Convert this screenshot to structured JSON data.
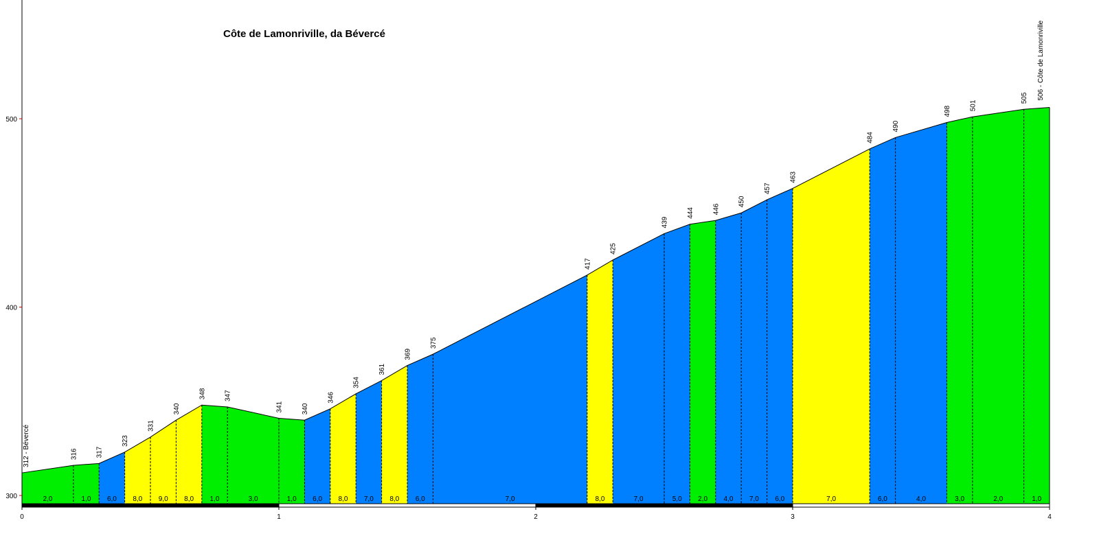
{
  "chart_data": {
    "type": "area",
    "title": "Côte de Lamonriville, da Bévercé",
    "xlabel": "",
    "ylabel": "",
    "xlim": [
      0,
      4
    ],
    "ylim": [
      300,
      545
    ],
    "x_ticks": [
      "0",
      "1",
      "2",
      "3",
      "4"
    ],
    "y_ticks": [
      "300",
      "400",
      "500"
    ],
    "start_label": "312 - Bévercé",
    "end_label": "506 - Côte de Lamonriville",
    "grade_colors": {
      "low": "#00ee00",
      "mid": "#0080ff",
      "high": "#ffff00"
    },
    "points": [
      {
        "x": 0.0,
        "elev": 312,
        "label": ""
      },
      {
        "x": 0.2,
        "elev": 316,
        "label": "316"
      },
      {
        "x": 0.3,
        "elev": 317,
        "label": "317"
      },
      {
        "x": 0.4,
        "elev": 323,
        "label": "323"
      },
      {
        "x": 0.5,
        "elev": 331,
        "label": "331"
      },
      {
        "x": 0.6,
        "elev": 340,
        "label": "340"
      },
      {
        "x": 0.7,
        "elev": 348,
        "label": "348"
      },
      {
        "x": 0.8,
        "elev": 347,
        "label": "347"
      },
      {
        "x": 1.0,
        "elev": 341,
        "label": "341"
      },
      {
        "x": 1.1,
        "elev": 340,
        "label": "340"
      },
      {
        "x": 1.2,
        "elev": 346,
        "label": "346"
      },
      {
        "x": 1.3,
        "elev": 354,
        "label": "354"
      },
      {
        "x": 1.4,
        "elev": 361,
        "label": "361"
      },
      {
        "x": 1.5,
        "elev": 369,
        "label": "369"
      },
      {
        "x": 1.6,
        "elev": 375,
        "label": "375"
      },
      {
        "x": 2.2,
        "elev": 417,
        "label": "417"
      },
      {
        "x": 2.3,
        "elev": 425,
        "label": "425"
      },
      {
        "x": 2.5,
        "elev": 439,
        "label": "439"
      },
      {
        "x": 2.6,
        "elev": 444,
        "label": "444"
      },
      {
        "x": 2.7,
        "elev": 446,
        "label": "446"
      },
      {
        "x": 2.8,
        "elev": 450,
        "label": "450"
      },
      {
        "x": 2.9,
        "elev": 457,
        "label": "457"
      },
      {
        "x": 3.0,
        "elev": 463,
        "label": "463"
      },
      {
        "x": 3.3,
        "elev": 484,
        "label": "484"
      },
      {
        "x": 3.4,
        "elev": 490,
        "label": "490"
      },
      {
        "x": 3.6,
        "elev": 498,
        "label": "498"
      },
      {
        "x": 3.7,
        "elev": 501,
        "label": "501"
      },
      {
        "x": 3.9,
        "elev": 505,
        "label": "505"
      },
      {
        "x": 4.0,
        "elev": 506,
        "label": ""
      }
    ],
    "segments": [
      {
        "grade": "2,0",
        "class": "low"
      },
      {
        "grade": "1,0",
        "class": "low"
      },
      {
        "grade": "6,0",
        "class": "mid"
      },
      {
        "grade": "8,0",
        "class": "high"
      },
      {
        "grade": "9,0",
        "class": "high"
      },
      {
        "grade": "8,0",
        "class": "high"
      },
      {
        "grade": "1,0",
        "class": "low"
      },
      {
        "grade": "3,0",
        "class": "low"
      },
      {
        "grade": "1,0",
        "class": "low"
      },
      {
        "grade": "6,0",
        "class": "mid"
      },
      {
        "grade": "8,0",
        "class": "high"
      },
      {
        "grade": "7,0",
        "class": "mid"
      },
      {
        "grade": "8,0",
        "class": "high"
      },
      {
        "grade": "6,0",
        "class": "mid"
      },
      {
        "grade": "7,0",
        "class": "mid"
      },
      {
        "grade": "8,0",
        "class": "high"
      },
      {
        "grade": "7,0",
        "class": "mid"
      },
      {
        "grade": "5,0",
        "class": "mid"
      },
      {
        "grade": "2,0",
        "class": "low"
      },
      {
        "grade": "4,0",
        "class": "mid"
      },
      {
        "grade": "7,0",
        "class": "mid"
      },
      {
        "grade": "6,0",
        "class": "mid"
      },
      {
        "grade": "7,0",
        "class": "high"
      },
      {
        "grade": "6,0",
        "class": "mid"
      },
      {
        "grade": "4,0",
        "class": "mid"
      },
      {
        "grade": "3,0",
        "class": "low"
      },
      {
        "grade": "2,0",
        "class": "low"
      },
      {
        "grade": "1,0",
        "class": "low"
      }
    ]
  }
}
